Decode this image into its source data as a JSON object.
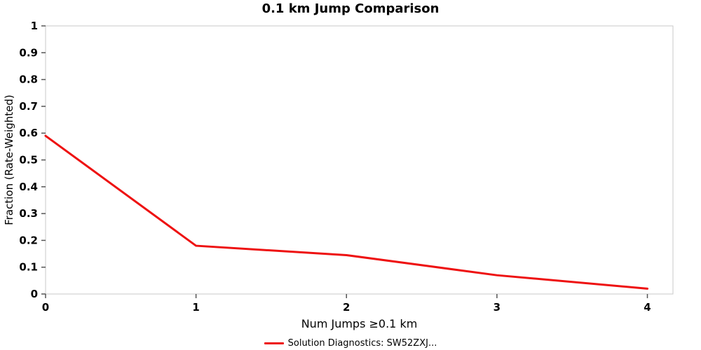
{
  "title": "0.1 km Jump Comparison",
  "chart_data": {
    "type": "line",
    "title": "0.1 km Jump Comparison",
    "xlabel": "Num Jumps ≥0.1 km",
    "ylabel": "Fraction (Rate-Weighted)",
    "xlim": [
      0,
      4.17
    ],
    "ylim": [
      0,
      1
    ],
    "xticks": [
      0,
      1,
      2,
      3,
      4
    ],
    "yticks": [
      0,
      0.1,
      0.2,
      0.3,
      0.4,
      0.5,
      0.6,
      0.7,
      0.8,
      0.9,
      1
    ],
    "grid": false,
    "legend_position": "bottom-center",
    "axis_border_color": "#c9c9c9",
    "tick_color": "#555555",
    "series": [
      {
        "name": "Solution Diagnostics: SW52ZXJ...",
        "color": "#ee1111",
        "x": [
          0,
          1,
          2,
          3,
          4
        ],
        "y": [
          0.59,
          0.18,
          0.145,
          0.07,
          0.02
        ]
      }
    ]
  },
  "legend": {
    "label": "Solution Diagnostics: SW52ZXJ..."
  }
}
